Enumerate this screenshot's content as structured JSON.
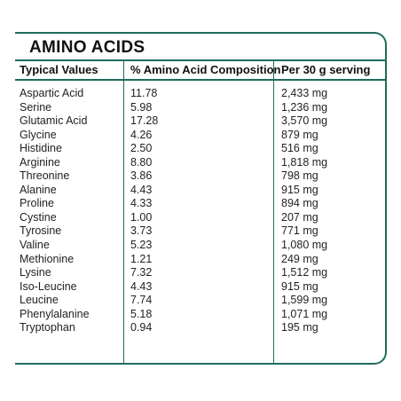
{
  "title": "AMINO ACIDS",
  "headers": [
    "Typical Values",
    "% Amino Acid Composition",
    "Per 30 g serving"
  ],
  "rows": [
    {
      "name": "Aspartic Acid",
      "pct": "11.78",
      "serving": "2,433 mg"
    },
    {
      "name": "Serine",
      "pct": "5.98",
      "serving": "1,236 mg"
    },
    {
      "name": "Glutamic Acid",
      "pct": "17.28",
      "serving": "3,570 mg"
    },
    {
      "name": "Glycine",
      "pct": "4.26",
      "serving": "879 mg"
    },
    {
      "name": "Histidine",
      "pct": "2.50",
      "serving": "516 mg"
    },
    {
      "name": "Arginine",
      "pct": "8.80",
      "serving": "1,818 mg"
    },
    {
      "name": "Threonine",
      "pct": "3.86",
      "serving": "798 mg"
    },
    {
      "name": "Alanine",
      "pct": "4.43",
      "serving": "915 mg"
    },
    {
      "name": "Proline",
      "pct": "4.33",
      "serving": "894 mg"
    },
    {
      "name": "Cystine",
      "pct": "1.00",
      "serving": "207 mg"
    },
    {
      "name": "Tyrosine",
      "pct": "3.73",
      "serving": "771 mg"
    },
    {
      "name": "Valine",
      "pct": "5.23",
      "serving": "1,080 mg"
    },
    {
      "name": "Methionine",
      "pct": "1.21",
      "serving": "249 mg"
    },
    {
      "name": "Lysine",
      "pct": "7.32",
      "serving": "1,512 mg"
    },
    {
      "name": "Iso-Leucine",
      "pct": "4.43",
      "serving": "915 mg"
    },
    {
      "name": "Leucine",
      "pct": "7.74",
      "serving": "1,599 mg"
    },
    {
      "name": "Phenylalanine",
      "pct": "5.18",
      "serving": "1,071 mg"
    },
    {
      "name": "Tryptophan",
      "pct": "0.94",
      "serving": "195 mg"
    }
  ],
  "colors": {
    "border": "#1f6b5c"
  }
}
